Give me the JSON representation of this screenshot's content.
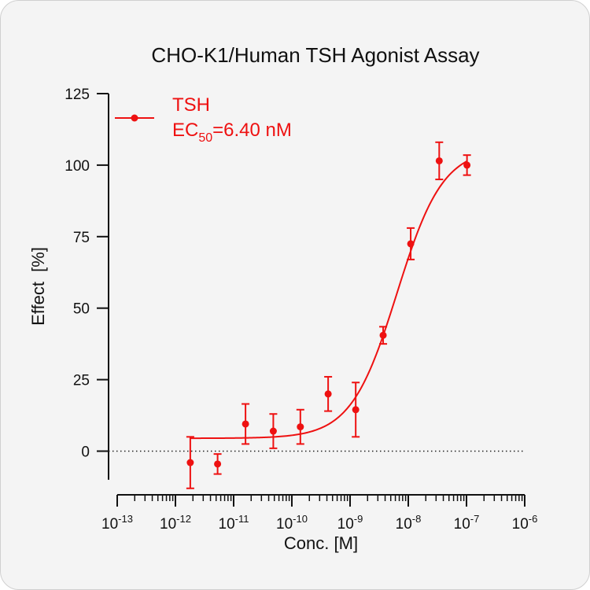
{
  "chart_data": {
    "type": "scatter",
    "title": "CHO-K1/Human TSH Agonist Assay",
    "xlabel": "Conc. [M]",
    "ylabel": "Effect  [%]",
    "x_scale": "log10",
    "xlim": [
      1e-13,
      1e-06
    ],
    "ylim": [
      -10,
      125
    ],
    "x_ticks": [
      {
        "base": "10",
        "exp": "-13"
      },
      {
        "base": "10",
        "exp": "-12"
      },
      {
        "base": "10",
        "exp": "-11"
      },
      {
        "base": "10",
        "exp": "-10"
      },
      {
        "base": "10",
        "exp": "-9"
      },
      {
        "base": "10",
        "exp": "-8"
      },
      {
        "base": "10",
        "exp": "-7"
      },
      {
        "base": "10",
        "exp": "-6"
      }
    ],
    "y_ticks": [
      "0",
      "25",
      "50",
      "75",
      "100",
      "125"
    ],
    "reference_line": {
      "y": 0,
      "style": "dotted"
    },
    "legend": {
      "position": "top-left",
      "series_label": "TSH",
      "ec50_prefix": "EC",
      "ec50_subscript": "50",
      "ec50_value": "=6.40 nM"
    },
    "series": [
      {
        "name": "TSH",
        "color": "#ee1111",
        "points": [
          {
            "x": 1.8e-12,
            "y": -4,
            "err": 9
          },
          {
            "x": 5.3e-12,
            "y": -4.5,
            "err": 3.5
          },
          {
            "x": 1.6e-11,
            "y": 9.5,
            "err": 7
          },
          {
            "x": 4.8e-11,
            "y": 7,
            "err": 6
          },
          {
            "x": 1.4e-10,
            "y": 8.5,
            "err": 6
          },
          {
            "x": 4.2e-10,
            "y": 20,
            "err": 6
          },
          {
            "x": 1.25e-09,
            "y": 14.5,
            "err": 9.5
          },
          {
            "x": 3.7e-09,
            "y": 40.5,
            "err": 3
          },
          {
            "x": 1.1e-08,
            "y": 72.5,
            "err": 5.5
          },
          {
            "x": 3.4e-08,
            "y": 101.5,
            "err": 6.5
          },
          {
            "x": 1.02e-07,
            "y": 100,
            "err": 3.5
          }
        ],
        "fit": {
          "model": "4PL",
          "bottom": 4.5,
          "top": 106,
          "ec50": 6.4e-09,
          "hill": 1.1,
          "x_from": 1.8e-12,
          "x_to": 1.02e-07
        }
      }
    ]
  }
}
